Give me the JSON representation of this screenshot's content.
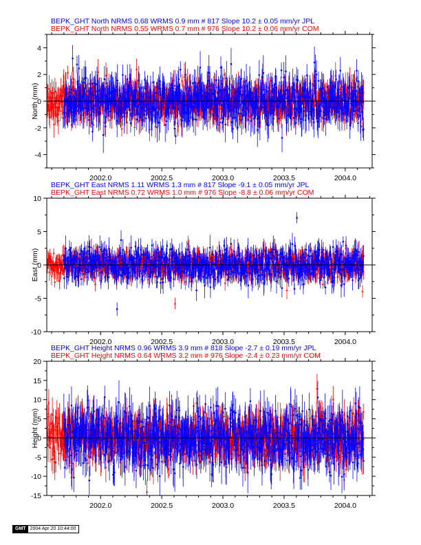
{
  "colors": {
    "jpl": "#0000ff",
    "com": "#ff0000",
    "axis": "#000000"
  },
  "footer": {
    "logo": "GMT",
    "timestamp": "2004 Apr 20 10:44:00"
  },
  "chart_data": [
    {
      "type": "scatter",
      "component": "north",
      "ylabel": "North (mm)",
      "xlim": [
        2001.56,
        2004.22
      ],
      "ylim": [
        -5,
        5
      ],
      "yticks": [
        -4,
        -2,
        0,
        2,
        4
      ],
      "xticks": [
        2002.0,
        2002.5,
        2003.0,
        2003.5,
        2004.0
      ],
      "xtick_labels": [
        "2002.0",
        "2002.5",
        "2003.0",
        "2003.5",
        "2004.0"
      ],
      "zero_line": true,
      "legend": [
        {
          "name": "JPL",
          "text": "BEPK_GHT North NRMS 0.68 WRMS  0.9 mm # 817 Slope   10.2 ±  0.05 mm/yr JPL"
        },
        {
          "name": "COM",
          "text": "BEPK_GHT North NRMS 0.55 WRMS  0.7 mm # 976 Slope   10.2 ±  0.06 mm/yr COM"
        }
      ],
      "series": [
        {
          "name": "JPL",
          "n": 817,
          "wrms": 0.9,
          "start": 2001.7,
          "end": 2004.15,
          "seed": 11
        },
        {
          "name": "COM",
          "n": 976,
          "wrms": 0.7,
          "start": 2001.56,
          "end": 2004.15,
          "seed": 23
        }
      ]
    },
    {
      "type": "scatter",
      "component": "east",
      "ylabel": "East (mm)",
      "xlim": [
        2001.56,
        2004.22
      ],
      "ylim": [
        -10,
        10
      ],
      "yticks": [
        -10,
        -5,
        0,
        5,
        10
      ],
      "xticks": [
        2002.0,
        2002.5,
        2003.0,
        2003.5,
        2004.0
      ],
      "xtick_labels": [
        "2002.0",
        "2002.5",
        "2003.0",
        "2003.5",
        "2004.0"
      ],
      "zero_line": true,
      "legend": [
        {
          "name": "JPL",
          "text": "BEPK_GHT East NRMS 1.11 WRMS  1.3 mm # 817 Slope   -9.1 ±  0.05 mm/yr JPL"
        },
        {
          "name": "COM",
          "text": "BEPK_GHT East NRMS 0.72 WRMS  1.0 mm # 976 Slope   -8.8 ±  0.06 mm/yr COM"
        }
      ],
      "series": [
        {
          "name": "JPL",
          "n": 817,
          "wrms": 1.3,
          "start": 2001.7,
          "end": 2004.15,
          "seed": 37
        },
        {
          "name": "COM",
          "n": 976,
          "wrms": 1.0,
          "start": 2001.56,
          "end": 2004.15,
          "seed": 41
        }
      ]
    },
    {
      "type": "scatter",
      "component": "height",
      "ylabel": "Height (mm)",
      "xlim": [
        2001.56,
        2004.22
      ],
      "ylim": [
        -15,
        20
      ],
      "yticks": [
        -15,
        -10,
        -5,
        0,
        5,
        10,
        15,
        20
      ],
      "xticks": [
        2002.0,
        2002.5,
        2003.0,
        2003.5,
        2004.0
      ],
      "xtick_labels": [
        "2002.0",
        "2002.5",
        "2003.0",
        "2003.5",
        "2004.0"
      ],
      "zero_line": true,
      "legend": [
        {
          "name": "JPL",
          "text": "BEPK_GHT Height NRMS 0.96 WRMS  3.9 mm # 818 Slope   -2.7 ±  0.19 mm/yr JPL"
        },
        {
          "name": "COM",
          "text": "BEPK_GHT Height NRMS 0.64 WRMS  3.2 mm # 976 Slope   -2.4 ±  0.23 mm/yr COM"
        }
      ],
      "series": [
        {
          "name": "JPL",
          "n": 818,
          "wrms": 3.9,
          "start": 2001.7,
          "end": 2004.15,
          "seed": 53
        },
        {
          "name": "COM",
          "n": 976,
          "wrms": 3.2,
          "start": 2001.56,
          "end": 2004.15,
          "seed": 67
        }
      ]
    }
  ]
}
